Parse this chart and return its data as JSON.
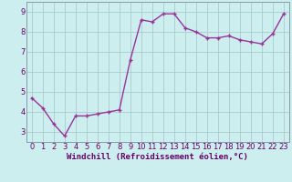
{
  "x": [
    0,
    1,
    2,
    3,
    4,
    5,
    6,
    7,
    8,
    9,
    10,
    11,
    12,
    13,
    14,
    15,
    16,
    17,
    18,
    19,
    20,
    21,
    22,
    23
  ],
  "y": [
    4.7,
    4.2,
    3.4,
    2.8,
    3.8,
    3.8,
    3.9,
    4.0,
    4.1,
    6.6,
    8.6,
    8.5,
    8.9,
    8.9,
    8.2,
    8.0,
    7.7,
    7.7,
    7.8,
    7.6,
    7.5,
    7.4,
    7.9,
    8.9
  ],
  "line_color": "#993399",
  "marker_color": "#993399",
  "bg_color": "#cceeee",
  "grid_color": "#aacccc",
  "xlabel": "Windchill (Refroidissement éolien,°C)",
  "xlim": [
    -0.5,
    23.5
  ],
  "ylim": [
    2.5,
    9.5
  ],
  "yticks": [
    3,
    4,
    5,
    6,
    7,
    8,
    9
  ],
  "xtick_labels": [
    "0",
    "1",
    "2",
    "3",
    "4",
    "5",
    "6",
    "7",
    "8",
    "9",
    "10",
    "11",
    "12",
    "13",
    "14",
    "15",
    "16",
    "17",
    "18",
    "19",
    "20",
    "21",
    "22",
    "23"
  ],
  "xlabel_fontsize": 6.5,
  "tick_fontsize": 6.0,
  "line_width": 1.0,
  "marker_size": 2.5,
  "axis_label_color": "#660066",
  "tick_color": "#660066"
}
